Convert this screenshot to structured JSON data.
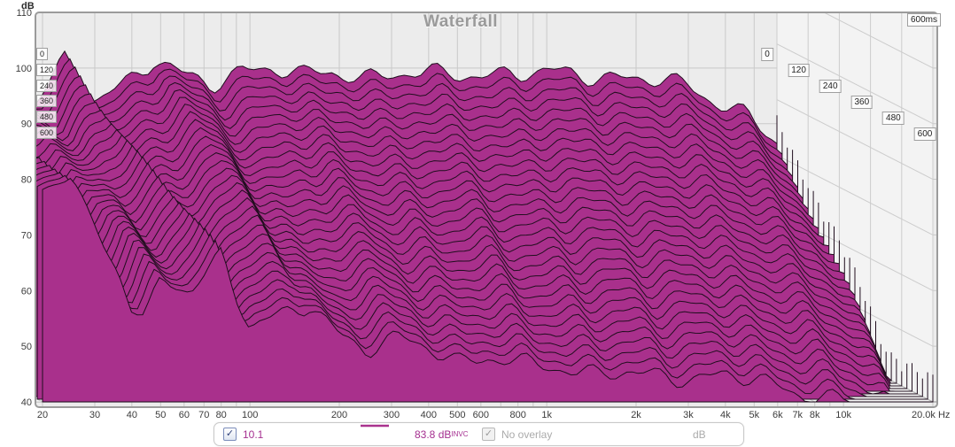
{
  "plot": {
    "title": "Waterfall",
    "y_axis": {
      "unit": "dB",
      "ticks": [
        110,
        100,
        90,
        80,
        70,
        60,
        50,
        40
      ]
    },
    "x_axis": {
      "unit": "Hz",
      "ticks": [
        {
          "f": 20,
          "label": "20"
        },
        {
          "f": 30,
          "label": "30"
        },
        {
          "f": 40,
          "label": "40"
        },
        {
          "f": 50,
          "label": "50"
        },
        {
          "f": 60,
          "label": "60"
        },
        {
          "f": 70,
          "label": "70"
        },
        {
          "f": 80,
          "label": "80"
        },
        {
          "f": 100,
          "label": "100"
        },
        {
          "f": 200,
          "label": "200"
        },
        {
          "f": 300,
          "label": "300"
        },
        {
          "f": 400,
          "label": "400"
        },
        {
          "f": 500,
          "label": "500"
        },
        {
          "f": 600,
          "label": "600"
        },
        {
          "f": 800,
          "label": "800"
        },
        {
          "f": 1000,
          "label": "1k"
        },
        {
          "f": 2000,
          "label": "2k"
        },
        {
          "f": 3000,
          "label": "3k"
        },
        {
          "f": 4000,
          "label": "4k"
        },
        {
          "f": 5000,
          "label": "5k"
        },
        {
          "f": 6000,
          "label": "6k"
        },
        {
          "f": 7000,
          "label": "7k"
        },
        {
          "f": 8000,
          "label": "8k"
        },
        {
          "f": 10000,
          "label": "10k"
        },
        {
          "f": 20000,
          "label": "20.0k"
        }
      ],
      "grid_freqs": [
        20,
        30,
        40,
        50,
        60,
        70,
        80,
        90,
        100,
        200,
        300,
        400,
        500,
        600,
        700,
        800,
        900,
        1000,
        2000,
        3000,
        4000,
        5000,
        6000,
        7000,
        8000,
        9000,
        10000,
        20000
      ]
    },
    "time_axis": {
      "unit": "ms",
      "corner_label": "600ms",
      "slice_labels": [
        "0",
        "120",
        "240",
        "360",
        "480",
        "600"
      ]
    }
  },
  "legend": {
    "trace_checkbox_checked": true,
    "trace_label": "10.1",
    "level_value": "83.8 dB",
    "level_superscript": "INVC",
    "overlay_checkbox_checked": true,
    "overlay_label": "No overlay",
    "unit_label": "dB",
    "check_glyph": "✓"
  },
  "colors": {
    "fill": "#a9308c",
    "line": "#200e1e",
    "accent_text": "#a52f90",
    "plot_bg": "#ececec",
    "grid": "#c9c9c9",
    "floor_bg": "#f6f6f6",
    "wall_bg": "#f3f3f3",
    "wall_grid": "#cccccc",
    "border": "#9b9b9b",
    "tick_text": "#3c3c3c"
  },
  "chart_data": {
    "type": "waterfall",
    "title": "Waterfall",
    "xlabel": "Hz",
    "ylabel": "dB",
    "x_scale": "log",
    "x_range_hz": [
      20,
      20000
    ],
    "y_range_db": [
      40,
      110
    ],
    "time_range_ms": [
      0,
      600
    ],
    "time_label_step_ms": 120,
    "num_slices": 31,
    "peak_level_db": 83.8,
    "base_response_db": [
      [
        20,
        81
      ],
      [
        25,
        84.5
      ],
      [
        32,
        78.5
      ],
      [
        40,
        80.5
      ],
      [
        50,
        84
      ],
      [
        63,
        79.5
      ],
      [
        80,
        87
      ],
      [
        100,
        79.5
      ],
      [
        125,
        83
      ],
      [
        160,
        87.5
      ],
      [
        200,
        84
      ],
      [
        250,
        82.5
      ],
      [
        315,
        85.5
      ],
      [
        400,
        86
      ],
      [
        500,
        84
      ],
      [
        630,
        85
      ],
      [
        800,
        84
      ],
      [
        1000,
        85
      ],
      [
        1250,
        84
      ],
      [
        1600,
        85
      ],
      [
        2000,
        84.3
      ],
      [
        2500,
        85
      ],
      [
        3150,
        84.3
      ],
      [
        4000,
        85
      ],
      [
        5000,
        84.3
      ],
      [
        6300,
        83.8
      ],
      [
        8000,
        83.3
      ],
      [
        10000,
        82.5
      ],
      [
        12500,
        80
      ],
      [
        16000,
        77
      ],
      [
        20000,
        72
      ]
    ],
    "decay_db_over_600ms": [
      [
        20,
        3
      ],
      [
        25,
        4
      ],
      [
        32,
        10
      ],
      [
        36,
        16
      ],
      [
        40,
        24
      ],
      [
        44,
        27
      ],
      [
        50,
        22
      ],
      [
        63,
        20
      ],
      [
        80,
        20
      ],
      [
        100,
        26
      ],
      [
        125,
        28
      ],
      [
        160,
        30
      ],
      [
        250,
        33
      ],
      [
        400,
        36
      ],
      [
        630,
        37
      ],
      [
        1000,
        38
      ],
      [
        2000,
        40
      ],
      [
        4000,
        40
      ],
      [
        8000,
        42
      ],
      [
        20000,
        43
      ]
    ]
  }
}
